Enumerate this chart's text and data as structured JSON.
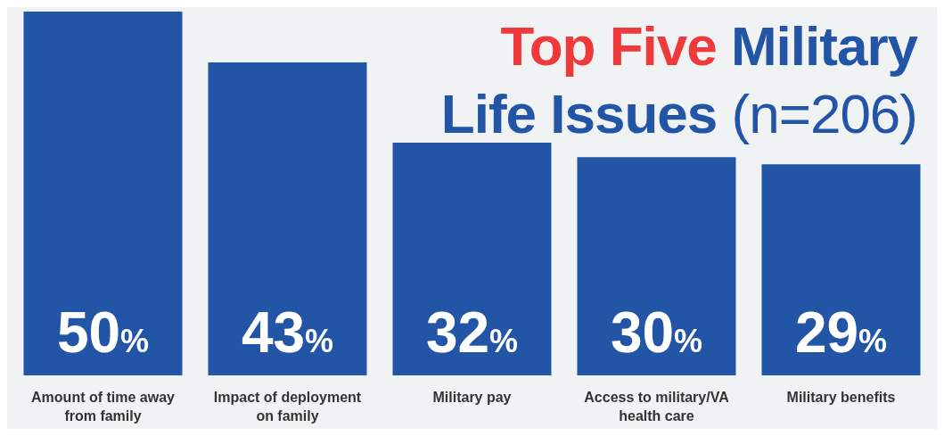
{
  "chart_data": {
    "type": "bar",
    "title": "Top Five Military Life Issues (n=206)",
    "categories": [
      "Amount of time away from family",
      "Impact of deployment on family",
      "Military pay",
      "Access to military/VA health care",
      "Military benefits"
    ],
    "values": [
      50,
      43,
      32,
      30,
      29
    ],
    "value_labels": [
      "50%",
      "43%",
      "32%",
      "30%",
      "29%"
    ],
    "color": "#2255a5",
    "grid": false,
    "legend": false
  }
}
